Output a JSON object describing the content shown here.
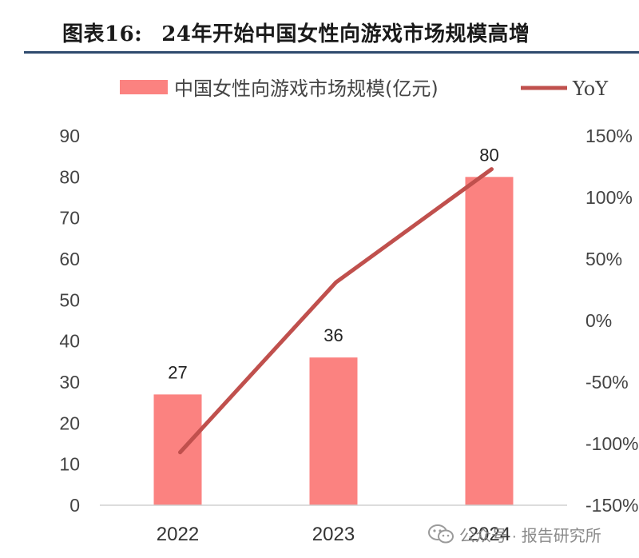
{
  "header": {
    "figure_label": "图表16:",
    "title": "24年开始中国女性向游戏市场规模高增"
  },
  "chart_data": {
    "type": "bar",
    "categories": [
      "2022",
      "2023",
      "2024"
    ],
    "series": [
      {
        "name": "中国女性向游戏市场规模(亿元)",
        "type": "bar",
        "axis": "left",
        "values": [
          27,
          36,
          80
        ],
        "color": "#fb8280"
      },
      {
        "name": "YoY",
        "type": "line",
        "axis": "right",
        "values": [
          -107,
          31,
          123
        ],
        "color": "#c0504d"
      }
    ],
    "data_labels": [
      "27",
      "36",
      "80"
    ],
    "left_axis": {
      "ylim": [
        0,
        90
      ],
      "ticks": [
        "0",
        "10",
        "20",
        "30",
        "40",
        "50",
        "60",
        "70",
        "80",
        "90"
      ]
    },
    "right_axis": {
      "ylim": [
        -150,
        150
      ],
      "ticks": [
        "-150%",
        "-100%",
        "-50%",
        "0%",
        "50%",
        "100%",
        "150%"
      ]
    },
    "legend_position": "top",
    "grid": false
  },
  "watermark": {
    "text": "公众号 · 报告研究所",
    "icon": "wechat-icon"
  }
}
